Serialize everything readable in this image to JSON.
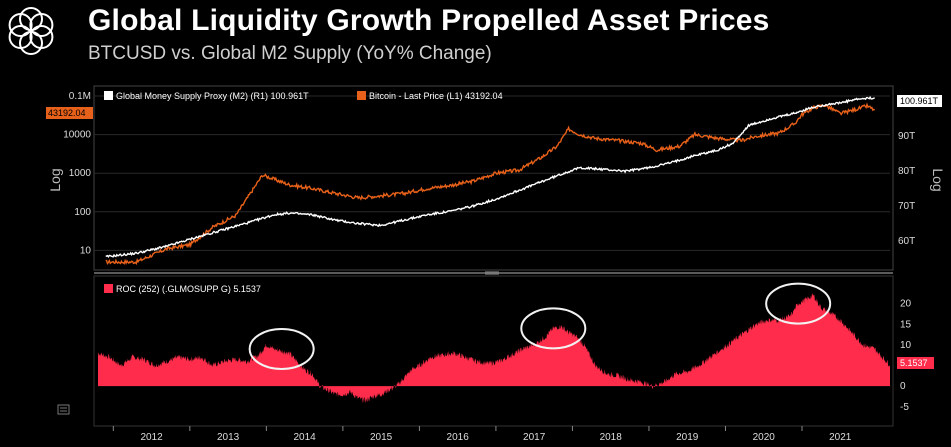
{
  "header": {
    "title": "Global Liquidity Growth Propelled Asset Prices",
    "subtitle": "BTCUSD vs. Global M2 Supply (YoY% Change)"
  },
  "colors": {
    "background": "#000000",
    "btc": "#e8611a",
    "m2": "#ffffff",
    "roc": "#ff2d4b",
    "btc_tag": "#e8611a",
    "m2_tag": "#ffffff"
  },
  "chart_data": [
    {
      "type": "line",
      "panel": "top",
      "legend": [
        {
          "label": "Global Money Supply Proxy (M2) (R1) 100.961T",
          "color": "#ffffff"
        },
        {
          "label": "Bitcoin - Last Price (L1) 43192.04",
          "color": "#e8611a"
        }
      ],
      "left_axis": {
        "label": "Log",
        "scale": "log",
        "ticks": [
          "0.1M",
          "10000",
          "1000",
          "100",
          "10"
        ],
        "range": [
          5,
          100000
        ]
      },
      "right_axis": {
        "label": "Log",
        "ticks": [
          "90T",
          "80T",
          "70T",
          "60T"
        ],
        "range": [
          54,
          101.5
        ]
      },
      "current_value_tags": {
        "left": "43192.04",
        "right": "100.961T"
      },
      "series": [
        {
          "name": "Bitcoin - Last Price (L1)",
          "axis": "left",
          "x": [
            2011.9,
            2012.3,
            2012.7,
            2013.0,
            2013.3,
            2013.6,
            2013.85,
            2013.95,
            2014.1,
            2014.3,
            2014.6,
            2014.9,
            2015.2,
            2015.5,
            2015.8,
            2016.1,
            2016.4,
            2016.7,
            2017.0,
            2017.3,
            2017.6,
            2017.8,
            2017.95,
            2018.1,
            2018.3,
            2018.6,
            2018.9,
            2019.1,
            2019.4,
            2019.6,
            2019.9,
            2020.2,
            2020.4,
            2020.7,
            2020.9,
            2021.0,
            2021.15,
            2021.3,
            2021.5,
            2021.7,
            2021.85,
            2021.95
          ],
          "values": [
            5,
            5,
            11,
            14,
            40,
            80,
            450,
            900,
            700,
            500,
            400,
            300,
            230,
            260,
            300,
            400,
            480,
            620,
            1000,
            1200,
            2600,
            5000,
            14000,
            10000,
            8000,
            7000,
            6000,
            4000,
            5000,
            10000,
            8000,
            7000,
            9000,
            11000,
            19000,
            33000,
            50000,
            58000,
            35000,
            45000,
            55000,
            43192.04
          ]
        },
        {
          "name": "Global Money Supply Proxy (M2) (R1)",
          "axis": "right",
          "x": [
            2011.9,
            2012.3,
            2012.7,
            2013.0,
            2013.4,
            2013.8,
            2014.1,
            2014.3,
            2014.6,
            2014.9,
            2015.2,
            2015.5,
            2015.8,
            2016.1,
            2016.4,
            2016.7,
            2017.0,
            2017.3,
            2017.6,
            2017.9,
            2018.1,
            2018.4,
            2018.7,
            2019.0,
            2019.3,
            2019.6,
            2019.9,
            2020.1,
            2020.3,
            2020.6,
            2020.9,
            2021.1,
            2021.3,
            2021.5,
            2021.7,
            2021.95
          ],
          "values": [
            55.5,
            56.5,
            58.5,
            60.5,
            63.0,
            65.5,
            67.5,
            68.0,
            67.5,
            66.0,
            65.0,
            64.5,
            66.0,
            67.5,
            68.5,
            70.0,
            72.0,
            74.5,
            77.0,
            79.5,
            81.0,
            80.5,
            80.0,
            81.0,
            82.5,
            84.5,
            86.0,
            88.0,
            93.0,
            95.0,
            96.5,
            98.0,
            99.0,
            99.5,
            100.5,
            100.961
          ]
        }
      ]
    },
    {
      "type": "area",
      "panel": "bottom",
      "legend": [
        {
          "label": "ROC (252) (.GLMOSUPP G) 5.1537",
          "color": "#ff2d4b"
        }
      ],
      "y_ticks": [
        "20",
        "15",
        "10",
        "5",
        "0",
        "-5"
      ],
      "ylim": [
        -7,
        25
      ],
      "current_value_tag": "5.1537",
      "x_ticks": [
        "2012",
        "2013",
        "2014",
        "2015",
        "2016",
        "2017",
        "2018",
        "2019",
        "2020",
        "2021"
      ],
      "xlim": [
        2011.8,
        2022.15
      ],
      "x": [
        2011.8,
        2011.95,
        2012.1,
        2012.25,
        2012.4,
        2012.55,
        2012.7,
        2012.85,
        2013.0,
        2013.15,
        2013.3,
        2013.45,
        2013.6,
        2013.75,
        2013.9,
        2014.0,
        2014.1,
        2014.2,
        2014.3,
        2014.4,
        2014.5,
        2014.6,
        2014.7,
        2014.8,
        2014.9,
        2015.0,
        2015.1,
        2015.2,
        2015.3,
        2015.4,
        2015.5,
        2015.6,
        2015.7,
        2015.8,
        2015.9,
        2016.0,
        2016.15,
        2016.3,
        2016.45,
        2016.6,
        2016.75,
        2016.9,
        2017.05,
        2017.2,
        2017.35,
        2017.5,
        2017.65,
        2017.75,
        2017.85,
        2017.95,
        2018.05,
        2018.15,
        2018.3,
        2018.45,
        2018.6,
        2018.75,
        2018.9,
        2019.05,
        2019.2,
        2019.35,
        2019.5,
        2019.65,
        2019.8,
        2019.95,
        2020.1,
        2020.25,
        2020.4,
        2020.55,
        2020.7,
        2020.85,
        2020.95,
        2021.05,
        2021.15,
        2021.25,
        2021.35,
        2021.5,
        2021.65,
        2021.8,
        2021.95,
        2022.05,
        2022.15
      ],
      "values": [
        8,
        7,
        5,
        7,
        6.5,
        5,
        6,
        7,
        6.5,
        7,
        5,
        6,
        6.5,
        6,
        7.5,
        10,
        9,
        8.5,
        8,
        6,
        4,
        3,
        0,
        -1,
        -2,
        -2,
        -1.5,
        -3,
        -3.5,
        -2.5,
        -2,
        -1,
        0,
        2,
        4,
        5,
        7,
        7.5,
        8,
        7,
        6,
        5.5,
        6,
        7.5,
        9,
        10,
        12,
        14,
        14.5,
        13,
        12,
        10,
        5,
        3,
        2.5,
        1.5,
        1,
        0,
        1,
        3,
        3.5,
        5,
        7,
        9,
        11,
        13,
        15,
        16,
        16,
        17,
        20,
        21,
        22,
        19,
        18,
        16,
        13,
        10,
        9,
        7,
        5.1537
      ],
      "highlights": [
        {
          "x_center": 2014.2,
          "y_center": 9.0
        },
        {
          "x_center": 2017.75,
          "y_center": 14.0
        },
        {
          "x_center": 2020.95,
          "y_center": 20.0
        }
      ]
    }
  ]
}
